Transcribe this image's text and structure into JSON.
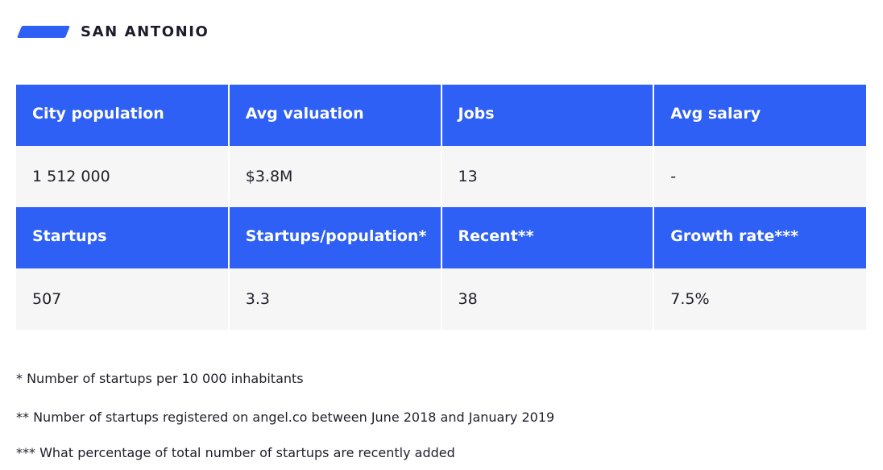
{
  "header": {
    "city": "SAN ANTONIO",
    "accent_color": "#2f60f5"
  },
  "table": {
    "rows": [
      {
        "headers": [
          "City population",
          "Avg valuation",
          "Jobs",
          "Avg salary"
        ],
        "values": [
          "1 512 000",
          "$3.8M",
          "13",
          "-"
        ]
      },
      {
        "headers": [
          "Startups",
          "Startups/population*",
          "Recent**",
          "Growth rate***"
        ],
        "values": [
          "507",
          "3.3",
          "38",
          "7.5%"
        ]
      }
    ]
  },
  "footnotes": [
    "* Number of startups per 10 000 inhabitants",
    "** Number of startups registered on angel.co between June 2018 and January 2019",
    "*** What percentage of total number of startups are recently added"
  ]
}
